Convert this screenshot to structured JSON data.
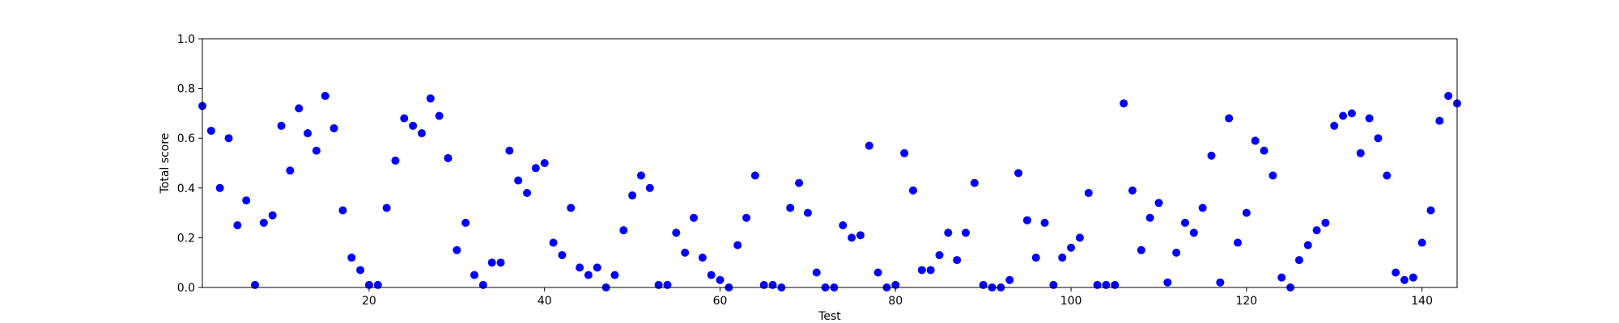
{
  "chart_data": {
    "type": "scatter",
    "title": "",
    "xlabel": "Test",
    "ylabel": "Total score",
    "xlim": [
      1,
      144
    ],
    "ylim": [
      0,
      1.0
    ],
    "x_ticks": [
      20,
      40,
      60,
      80,
      100,
      120,
      140
    ],
    "y_ticks": [
      0.0,
      0.2,
      0.4,
      0.6,
      0.8,
      1.0
    ],
    "y_tick_labels": [
      "0.0",
      "0.2",
      "0.4",
      "0.6",
      "0.8",
      "1.0"
    ],
    "grid": false,
    "marker_color": "#0000ff",
    "points": [
      [
        1,
        0.73
      ],
      [
        2,
        0.63
      ],
      [
        3,
        0.4
      ],
      [
        4,
        0.6
      ],
      [
        5,
        0.25
      ],
      [
        6,
        0.35
      ],
      [
        7,
        0.01
      ],
      [
        8,
        0.26
      ],
      [
        9,
        0.29
      ],
      [
        10,
        0.65
      ],
      [
        11,
        0.47
      ],
      [
        12,
        0.72
      ],
      [
        13,
        0.62
      ],
      [
        14,
        0.55
      ],
      [
        15,
        0.77
      ],
      [
        16,
        0.64
      ],
      [
        17,
        0.31
      ],
      [
        18,
        0.12
      ],
      [
        19,
        0.07
      ],
      [
        20,
        0.01
      ],
      [
        21,
        0.01
      ],
      [
        22,
        0.32
      ],
      [
        23,
        0.51
      ],
      [
        24,
        0.68
      ],
      [
        25,
        0.65
      ],
      [
        26,
        0.62
      ],
      [
        27,
        0.76
      ],
      [
        28,
        0.69
      ],
      [
        29,
        0.52
      ],
      [
        30,
        0.15
      ],
      [
        31,
        0.26
      ],
      [
        32,
        0.05
      ],
      [
        33,
        0.01
      ],
      [
        34,
        0.1
      ],
      [
        35,
        0.1
      ],
      [
        36,
        0.55
      ],
      [
        37,
        0.43
      ],
      [
        38,
        0.38
      ],
      [
        39,
        0.48
      ],
      [
        40,
        0.5
      ],
      [
        41,
        0.18
      ],
      [
        42,
        0.13
      ],
      [
        43,
        0.32
      ],
      [
        44,
        0.08
      ],
      [
        45,
        0.05
      ],
      [
        46,
        0.08
      ],
      [
        47,
        0.0
      ],
      [
        48,
        0.05
      ],
      [
        49,
        0.23
      ],
      [
        50,
        0.37
      ],
      [
        51,
        0.45
      ],
      [
        52,
        0.4
      ],
      [
        53,
        0.01
      ],
      [
        54,
        0.01
      ],
      [
        55,
        0.22
      ],
      [
        56,
        0.14
      ],
      [
        57,
        0.28
      ],
      [
        58,
        0.12
      ],
      [
        59,
        0.05
      ],
      [
        60,
        0.03
      ],
      [
        61,
        0.0
      ],
      [
        62,
        0.17
      ],
      [
        63,
        0.28
      ],
      [
        64,
        0.45
      ],
      [
        65,
        0.01
      ],
      [
        66,
        0.01
      ],
      [
        67,
        0.0
      ],
      [
        68,
        0.32
      ],
      [
        69,
        0.42
      ],
      [
        70,
        0.3
      ],
      [
        71,
        0.06
      ],
      [
        72,
        0.0
      ],
      [
        73,
        0.0
      ],
      [
        74,
        0.25
      ],
      [
        75,
        0.2
      ],
      [
        76,
        0.21
      ],
      [
        77,
        0.57
      ],
      [
        78,
        0.06
      ],
      [
        79,
        0.0
      ],
      [
        80,
        0.01
      ],
      [
        81,
        0.54
      ],
      [
        82,
        0.39
      ],
      [
        83,
        0.07
      ],
      [
        84,
        0.07
      ],
      [
        85,
        0.13
      ],
      [
        86,
        0.22
      ],
      [
        87,
        0.11
      ],
      [
        88,
        0.22
      ],
      [
        89,
        0.42
      ],
      [
        90,
        0.01
      ],
      [
        91,
        0.0
      ],
      [
        92,
        0.0
      ],
      [
        93,
        0.03
      ],
      [
        94,
        0.46
      ],
      [
        95,
        0.27
      ],
      [
        96,
        0.12
      ],
      [
        97,
        0.26
      ],
      [
        98,
        0.01
      ],
      [
        99,
        0.12
      ],
      [
        100,
        0.16
      ],
      [
        101,
        0.2
      ],
      [
        102,
        0.38
      ],
      [
        103,
        0.01
      ],
      [
        104,
        0.01
      ],
      [
        105,
        0.01
      ],
      [
        106,
        0.74
      ],
      [
        107,
        0.39
      ],
      [
        108,
        0.15
      ],
      [
        109,
        0.28
      ],
      [
        110,
        0.34
      ],
      [
        111,
        0.02
      ],
      [
        112,
        0.14
      ],
      [
        113,
        0.26
      ],
      [
        114,
        0.22
      ],
      [
        115,
        0.32
      ],
      [
        116,
        0.53
      ],
      [
        117,
        0.02
      ],
      [
        118,
        0.68
      ],
      [
        119,
        0.18
      ],
      [
        120,
        0.3
      ],
      [
        121,
        0.59
      ],
      [
        122,
        0.55
      ],
      [
        123,
        0.45
      ],
      [
        124,
        0.04
      ],
      [
        125,
        0.0
      ],
      [
        126,
        0.11
      ],
      [
        127,
        0.17
      ],
      [
        128,
        0.23
      ],
      [
        129,
        0.26
      ],
      [
        130,
        0.65
      ],
      [
        131,
        0.69
      ],
      [
        132,
        0.7
      ],
      [
        133,
        0.54
      ],
      [
        134,
        0.68
      ],
      [
        135,
        0.6
      ],
      [
        136,
        0.45
      ],
      [
        137,
        0.06
      ],
      [
        138,
        0.03
      ],
      [
        139,
        0.04
      ],
      [
        140,
        0.18
      ],
      [
        141,
        0.31
      ],
      [
        142,
        0.67
      ],
      [
        143,
        0.77
      ],
      [
        144,
        0.74
      ]
    ]
  }
}
